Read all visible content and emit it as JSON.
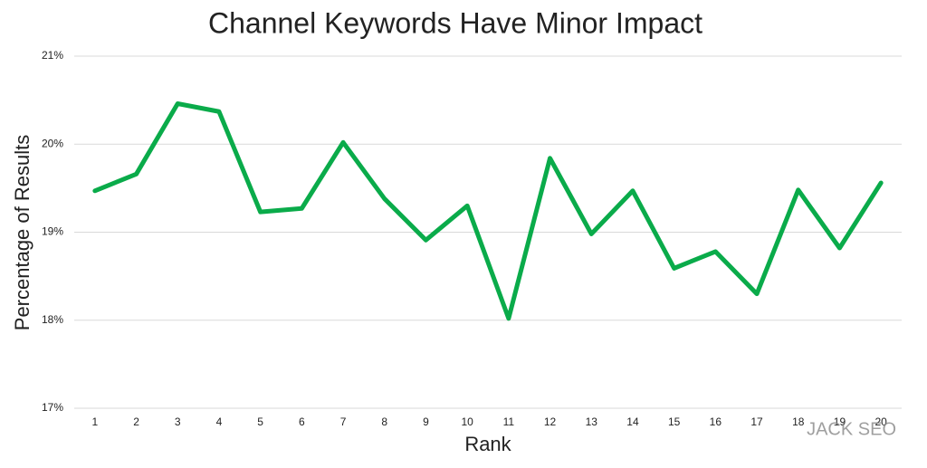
{
  "chart_data": {
    "type": "line",
    "title": "Channel Keywords Have Minor Impact",
    "x_label": "Rank",
    "y_label": "Percentage of Results",
    "categories": [
      "1",
      "2",
      "3",
      "4",
      "5",
      "6",
      "7",
      "8",
      "9",
      "10",
      "11",
      "12",
      "13",
      "14",
      "15",
      "16",
      "17",
      "18",
      "19",
      "20"
    ],
    "series": [
      {
        "name": "Percentage of Results",
        "color": "#0aab4a",
        "values": [
          19.47,
          19.66,
          20.46,
          20.37,
          19.23,
          19.27,
          20.02,
          19.38,
          18.91,
          19.3,
          18.02,
          19.84,
          18.98,
          19.47,
          18.59,
          18.78,
          18.3,
          19.48,
          18.82,
          19.56
        ]
      }
    ],
    "ylim": [
      17,
      21
    ],
    "yticks": [
      {
        "value": 17,
        "label": "17%"
      },
      {
        "value": 18,
        "label": "18%"
      },
      {
        "value": 19,
        "label": "19%"
      },
      {
        "value": 20,
        "label": "20%"
      },
      {
        "value": 21,
        "label": "21%"
      }
    ],
    "grid": true,
    "legend": false,
    "watermark": "JACK SEO"
  }
}
